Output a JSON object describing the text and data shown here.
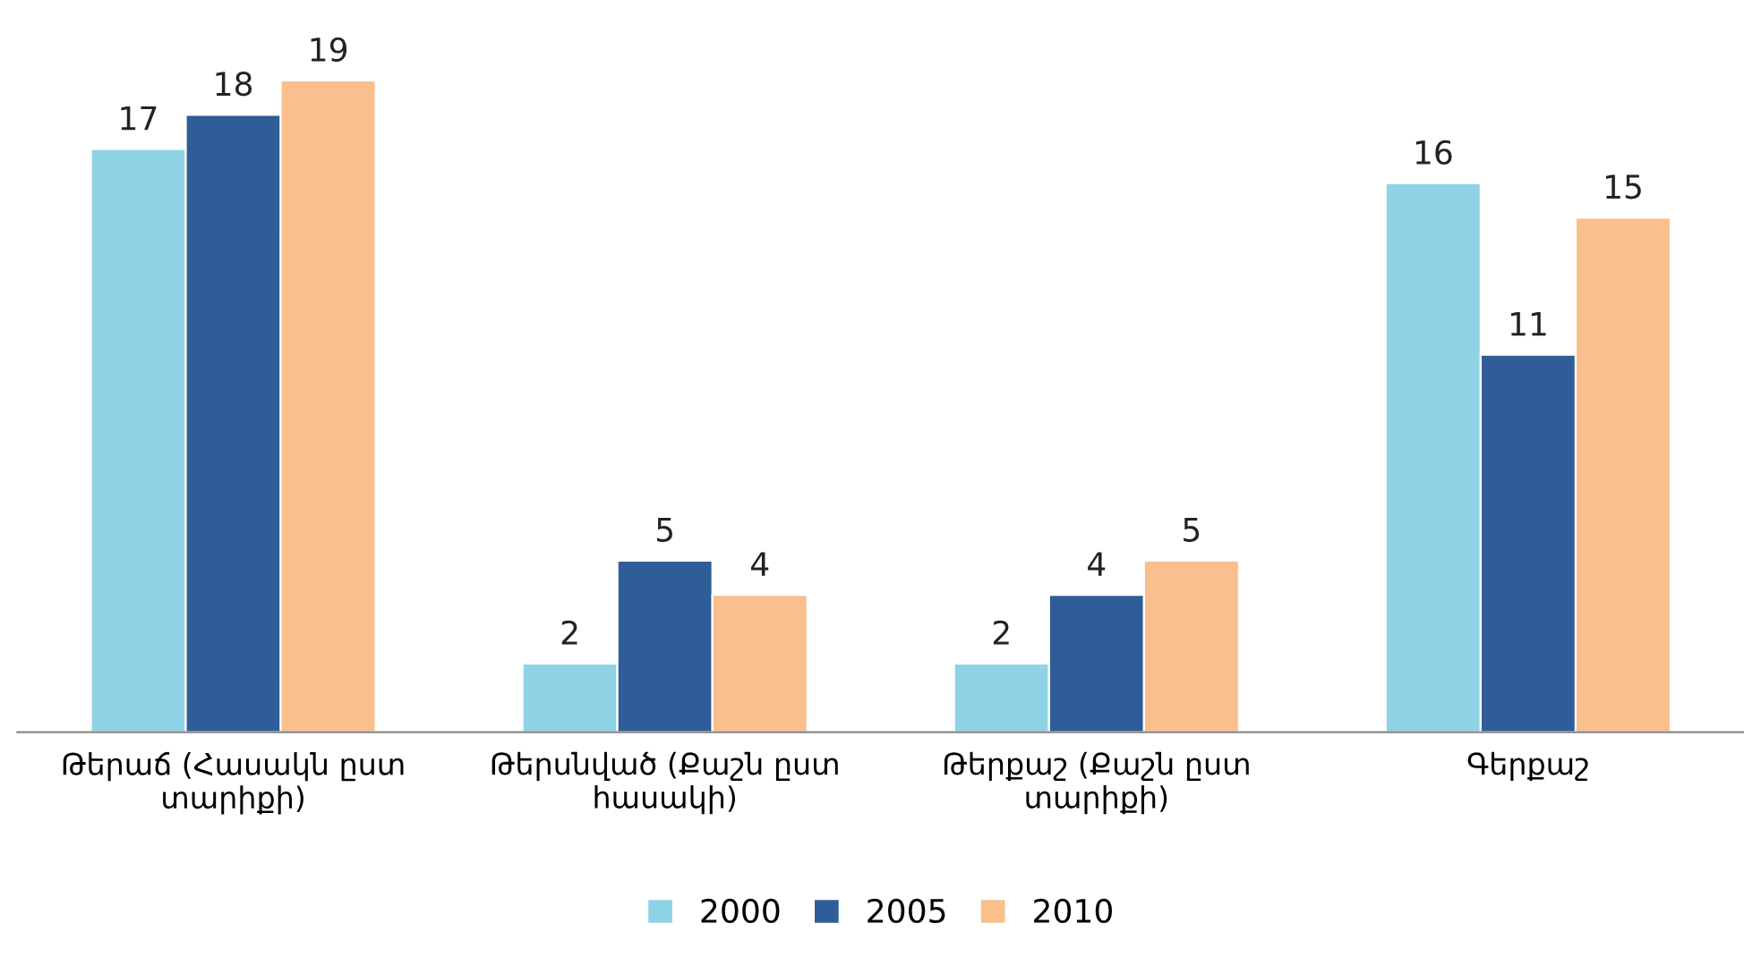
{
  "chart_data": {
    "type": "bar",
    "categories": [
      "Թերաճ (Հասակն ըստ տարիքի)",
      "Թերսնված (Քաշն ըստ հասակի)",
      "Թերքաշ (Քաշն ըստ տարիքի)",
      "Գերքաշ"
    ],
    "series": [
      {
        "name": "2000",
        "color": "#8fd3e6",
        "values": [
          17,
          2,
          2,
          16
        ]
      },
      {
        "name": "2005",
        "color": "#2f5d97",
        "values": [
          18,
          5,
          4,
          11
        ]
      },
      {
        "name": "2010",
        "color": "#f9bf8c",
        "values": [
          19,
          4,
          5,
          15
        ]
      }
    ],
    "data_labels": true,
    "legend": "bottom",
    "grid": false
  }
}
